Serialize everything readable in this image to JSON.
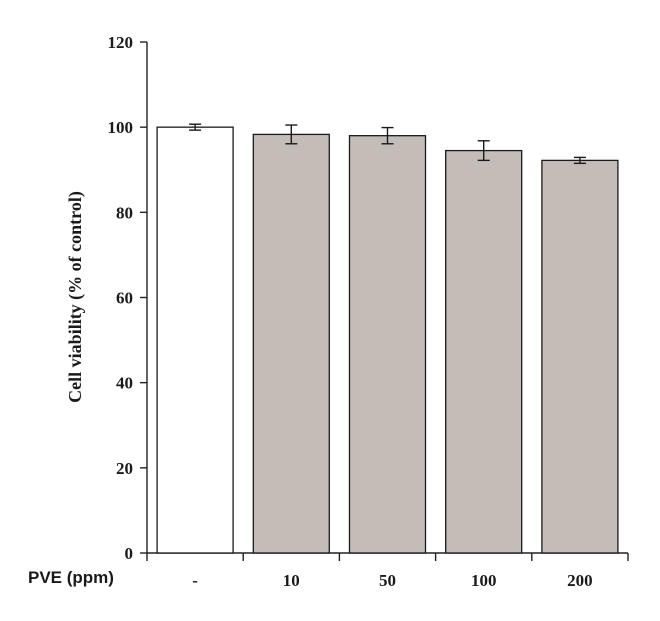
{
  "chart_data": {
    "type": "bar",
    "ylabel": "Cell viability (% of control)",
    "xgroup_label": "PVE (ppm)",
    "categories": [
      "-",
      "10",
      "50",
      "100",
      "200"
    ],
    "values": [
      100,
      98.3,
      98.0,
      94.5,
      92.2
    ],
    "errors": [
      0.7,
      2.2,
      1.9,
      2.3,
      0.7
    ],
    "bar_fills": [
      "#ffffff",
      "#c4bcb7",
      "#c4bcb7",
      "#c4bcb7",
      "#c4bcb7"
    ],
    "ylim": [
      0,
      120
    ],
    "yticks": [
      0,
      20,
      40,
      60,
      80,
      100,
      120
    ],
    "grid": false
  }
}
